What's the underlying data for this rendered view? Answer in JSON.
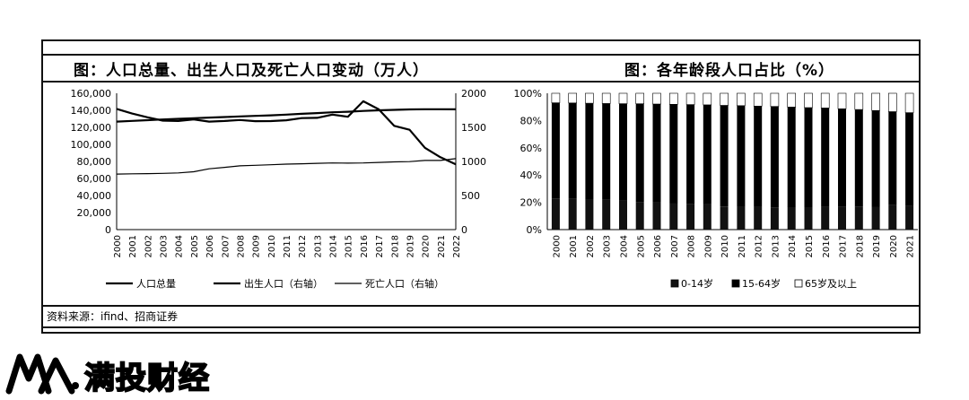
{
  "left_chart": {
    "title": "图：人口总量、出生人口及死亡人口变动（万人）",
    "legend": [
      "人口总量",
      "出生人口（右轴）",
      "死亡人口（右轴）"
    ]
  },
  "right_chart": {
    "title": "图：各年龄段人口占比（%）",
    "legend": [
      "0-14岁",
      "15-64岁",
      "65岁及以上"
    ]
  },
  "source": "资料来源：ifind、招商证券",
  "logo_text": "满投财经",
  "chart_data": [
    {
      "type": "line",
      "title": "图：人口总量、出生人口及死亡人口变动（万人）",
      "x": [
        "2000",
        "2001",
        "2002",
        "2003",
        "2004",
        "2005",
        "2006",
        "2007",
        "2008",
        "2009",
        "2010",
        "2011",
        "2012",
        "2013",
        "2014",
        "2015",
        "2016",
        "2017",
        "2018",
        "2019",
        "2020",
        "2021",
        "2022"
      ],
      "y_left": {
        "range": [
          0,
          160000
        ],
        "ticks": [
          "0",
          "20,000",
          "40,000",
          "60,000",
          "80,000",
          "100,000",
          "120,000",
          "140,000",
          "160,000"
        ]
      },
      "y_right": {
        "range": [
          0,
          2000
        ],
        "ticks": [
          "0",
          "500",
          "1000",
          "1500",
          "2000"
        ]
      },
      "series": [
        {
          "name": "人口总量",
          "axis": "left",
          "values": [
            126743,
            127627,
            128453,
            129227,
            129988,
            130756,
            131448,
            132129,
            132802,
            133450,
            134091,
            134916,
            135922,
            136726,
            137646,
            138326,
            139232,
            140011,
            140541,
            141008,
            141212,
            141260,
            141175
          ]
        },
        {
          "name": "出生人口（右轴）",
          "axis": "right",
          "values": [
            1771,
            1702,
            1647,
            1599,
            1593,
            1617,
            1584,
            1594,
            1608,
            1591,
            1592,
            1604,
            1635,
            1640,
            1687,
            1655,
            1883,
            1765,
            1523,
            1465,
            1200,
            1062,
            956
          ]
        },
        {
          "name": "死亡人口（右轴）",
          "axis": "right",
          "values": [
            814,
            818,
            821,
            825,
            832,
            849,
            892,
            913,
            935,
            943,
            951,
            960,
            966,
            972,
            977,
            975,
            977,
            986,
            993,
            998,
            1014,
            1014,
            1041
          ]
        }
      ],
      "legend_position": "bottom"
    },
    {
      "type": "bar",
      "stacked": true,
      "title": "图：各年龄段人口占比（%）",
      "categories": [
        "2000",
        "2001",
        "2002",
        "2003",
        "2004",
        "2005",
        "2006",
        "2007",
        "2008",
        "2009",
        "2010",
        "2011",
        "2012",
        "2013",
        "2014",
        "2015",
        "2016",
        "2017",
        "2018",
        "2019",
        "2020",
        "2021"
      ],
      "ylim": [
        0,
        100
      ],
      "yticks": [
        "0%",
        "20%",
        "40%",
        "60%",
        "80%",
        "100%"
      ],
      "series": [
        {
          "name": "0-14岁",
          "values": [
            22.9,
            22.5,
            22.4,
            22.1,
            21.5,
            20.3,
            19.8,
            19.4,
            19.0,
            18.5,
            16.6,
            16.5,
            16.5,
            16.4,
            16.5,
            16.5,
            16.7,
            16.8,
            16.9,
            16.8,
            17.9,
            17.5
          ]
        },
        {
          "name": "15-64岁",
          "values": [
            70.1,
            70.4,
            70.3,
            70.4,
            70.9,
            72.0,
            72.3,
            72.5,
            72.7,
            73.0,
            74.5,
            74.4,
            74.1,
            73.9,
            73.4,
            73.0,
            72.5,
            71.8,
            71.2,
            70.6,
            68.6,
            68.3
          ]
        },
        {
          "name": "65岁及以上",
          "values": [
            7.0,
            7.1,
            7.3,
            7.5,
            7.6,
            7.7,
            7.9,
            8.1,
            8.3,
            8.5,
            8.9,
            9.1,
            9.4,
            9.7,
            10.1,
            10.5,
            10.8,
            11.4,
            11.9,
            12.6,
            13.5,
            14.2
          ]
        }
      ],
      "colors": [
        "#111111",
        "#000000",
        "#ffffff"
      ],
      "legend_position": "bottom"
    }
  ]
}
